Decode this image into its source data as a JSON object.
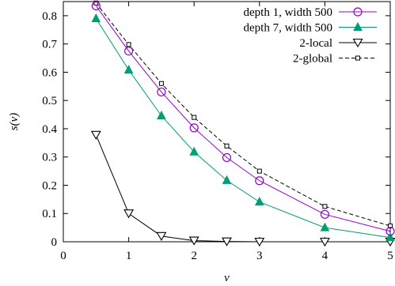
{
  "chart_data": {
    "type": "line",
    "title": "",
    "xlabel": "v",
    "ylabel": "s(v)",
    "xlim": [
      0,
      5
    ],
    "ylim": [
      0,
      0.85
    ],
    "xticks": [
      "0",
      "1",
      "2",
      "3",
      "4",
      "5"
    ],
    "yticks": [
      "0",
      "0.1",
      "0.2",
      "0.3",
      "0.4",
      "0.5",
      "0.6",
      "0.7",
      "0.8"
    ],
    "xtick_values": [
      0,
      1,
      2,
      3,
      4,
      5
    ],
    "ytick_values": [
      0,
      0.1,
      0.2,
      0.3,
      0.4,
      0.5,
      0.6,
      0.7,
      0.8
    ],
    "grid": false,
    "legend_position": "top-right",
    "series": [
      {
        "name": "depth 1, width 500",
        "color": "#9400d3",
        "marker": "circle-open",
        "dash": "solid",
        "x": [
          0.5,
          1,
          1.5,
          2,
          2.5,
          3,
          4,
          5
        ],
        "y": [
          0.835,
          0.675,
          0.53,
          0.403,
          0.298,
          0.216,
          0.097,
          0.037
        ]
      },
      {
        "name": "depth 7, width 500",
        "color": "#009e73",
        "marker": "triangle-filled",
        "dash": "solid",
        "x": [
          0.5,
          1,
          1.5,
          2,
          2.5,
          3,
          4,
          5
        ],
        "y": [
          0.79,
          0.608,
          0.446,
          0.318,
          0.217,
          0.141,
          0.05,
          0.015
        ]
      },
      {
        "name": "2-local",
        "color": "#000000",
        "marker": "triangle-down-open",
        "dash": "solid",
        "x": [
          0.5,
          1,
          1.5,
          2,
          2.5,
          3,
          4,
          5
        ],
        "y": [
          0.378,
          0.1,
          0.02,
          0.004,
          0.001,
          0.0,
          0.0,
          0.0
        ]
      },
      {
        "name": "2-global",
        "color": "#000000",
        "marker": "square-small",
        "dash": "dashed",
        "x": [
          0.5,
          1,
          1.5,
          2,
          2.5,
          3,
          4,
          5
        ],
        "y": [
          0.845,
          0.698,
          0.56,
          0.44,
          0.339,
          0.25,
          0.125,
          0.056
        ]
      }
    ]
  }
}
